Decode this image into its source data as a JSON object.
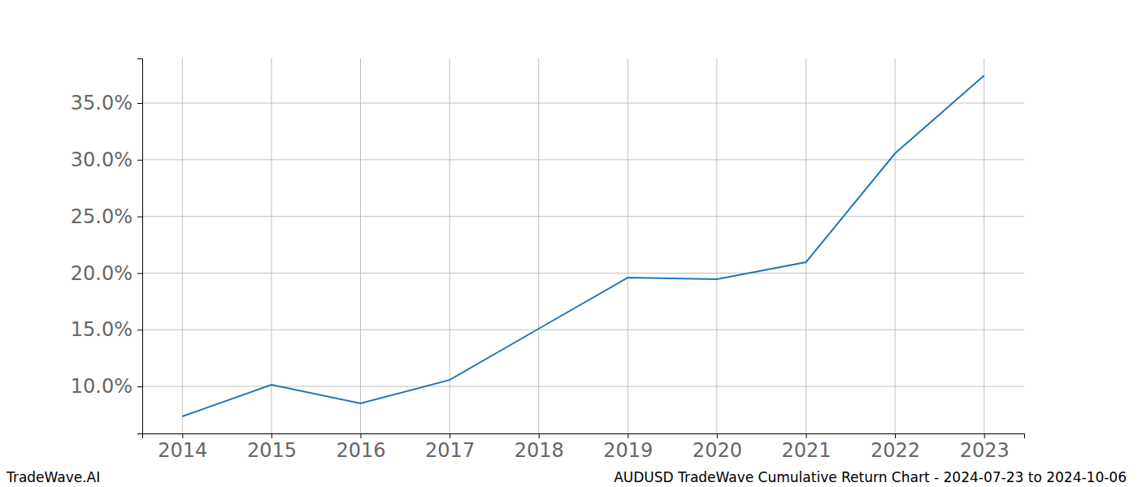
{
  "chart_data": {
    "type": "line",
    "x": [
      2014,
      2015,
      2016,
      2017,
      2018,
      2019,
      2020,
      2021,
      2022,
      2023
    ],
    "values": [
      7.35,
      10.15,
      8.5,
      10.57,
      15.09,
      19.6,
      19.46,
      20.96,
      30.56,
      37.44
    ],
    "color": "#1f77b4",
    "xlim": [
      2013.55,
      2023.45
    ],
    "xticks": [
      2014,
      2015,
      2016,
      2017,
      2018,
      2019,
      2020,
      2021,
      2022,
      2023
    ],
    "ylim": [
      5.85,
      38.94
    ],
    "yticks": [
      {
        "value": 10,
        "label": "10.0%"
      },
      {
        "value": 15,
        "label": "15.0%"
      },
      {
        "value": 20,
        "label": "20.0%"
      },
      {
        "value": 25,
        "label": "25.0%"
      },
      {
        "value": 30,
        "label": "30.0%"
      },
      {
        "value": 35,
        "label": "35.0%"
      }
    ],
    "grid": true,
    "caption_left": "TradeWave.AI",
    "caption_right": "AUDUSD TradeWave Cumulative Return Chart - 2024-07-23 to 2024-10-06"
  }
}
